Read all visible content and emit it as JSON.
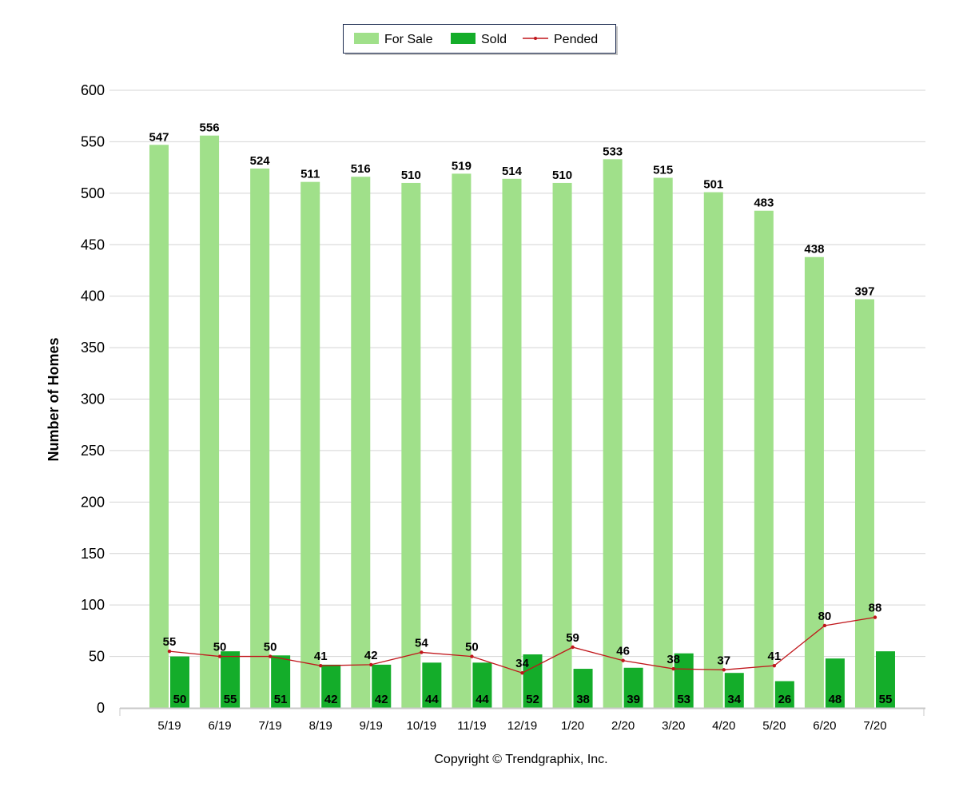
{
  "chart_data": {
    "type": "bar",
    "title": "",
    "xlabel": "",
    "ylabel": "Number of Homes",
    "ylim": [
      0,
      600
    ],
    "yticks": [
      0,
      50,
      100,
      150,
      200,
      250,
      300,
      350,
      400,
      450,
      500,
      550,
      600
    ],
    "grid": true,
    "legend_position": "top-center",
    "categories": [
      "5/19",
      "6/19",
      "7/19",
      "8/19",
      "9/19",
      "10/19",
      "11/19",
      "12/19",
      "1/20",
      "2/20",
      "3/20",
      "4/20",
      "5/20",
      "6/20",
      "7/20"
    ],
    "series": [
      {
        "name": "For Sale",
        "kind": "bar",
        "color": "#a0e08a",
        "values": [
          547,
          556,
          524,
          511,
          516,
          510,
          519,
          514,
          510,
          533,
          515,
          501,
          483,
          438,
          397
        ]
      },
      {
        "name": "Sold",
        "kind": "bar",
        "color": "#14ad2a",
        "values": [
          50,
          55,
          51,
          42,
          42,
          44,
          44,
          52,
          38,
          39,
          53,
          34,
          26,
          48,
          55
        ]
      },
      {
        "name": "Pended",
        "kind": "line",
        "color": "#c0161b",
        "values": [
          55,
          50,
          50,
          41,
          42,
          54,
          50,
          34,
          59,
          46,
          38,
          37,
          41,
          80,
          88
        ]
      }
    ]
  },
  "footer": {
    "copyright": "Copyright © Trendgraphix, Inc."
  }
}
